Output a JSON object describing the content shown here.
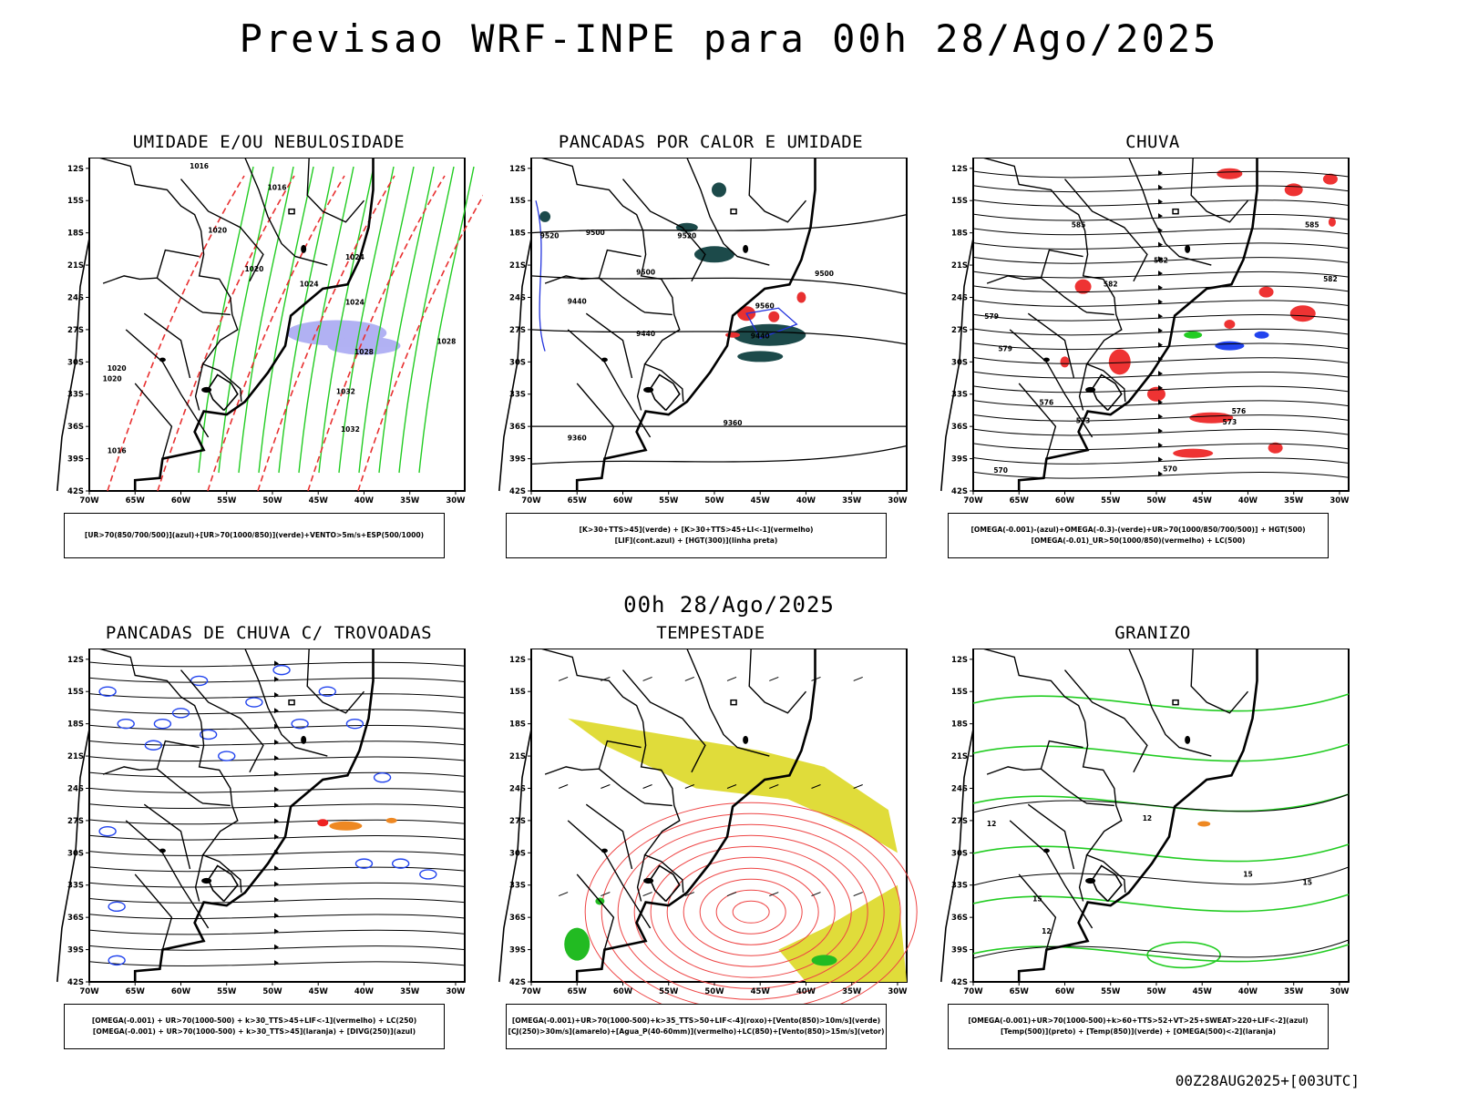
{
  "header": {
    "title": "Previsao WRF-INPE  para 00h 28/Ago/2025",
    "center_date": "00h 28/Ago/2025",
    "footer_code": "00Z28AUG2025+[003UTC]"
  },
  "axes": {
    "lat_labels": [
      "12S",
      "15S",
      "18S",
      "21S",
      "24S",
      "27S",
      "30S",
      "33S",
      "36S",
      "39S",
      "42S"
    ],
    "lon_labels": [
      "70W",
      "65W",
      "60W",
      "55W",
      "50W",
      "45W",
      "40W",
      "35W",
      "30W"
    ]
  },
  "panels": [
    {
      "id": "umidade",
      "title": "UMIDADE E/OU NEBULOSIDADE",
      "legend": [
        "[UR>70(850/700/500)](azul)+[UR>70(1000/850)](verde)+VENTO>5m/s+ESP(500/1000)"
      ],
      "contour_labels": [
        "1016",
        "1016",
        "1020",
        "1020",
        "1024",
        "1024",
        "1028",
        "1032",
        "1032",
        "1020",
        "1020",
        "1024",
        "1028",
        "1016"
      ],
      "colors": {
        "blue": "#8888ee",
        "green": "#22cc22",
        "red": "#e83030",
        "black": "#000000"
      },
      "icon": "humidity-map"
    },
    {
      "id": "pancadas-calor",
      "title": "PANCADAS POR CALOR E UMIDADE",
      "legend": [
        "[K>30+TTS>45](verde) + [K>30+TTS>45+LI<-1](vermelho)",
        "[LIF](cont.azul) + [HGT(300)](linha preta)"
      ],
      "contour_labels": [
        "9500",
        "9520",
        "9500",
        "9520",
        "9440",
        "9440",
        "9500",
        "9560",
        "9440",
        "9360",
        "9360"
      ],
      "colors": {
        "dark": "#1c4a4a",
        "red": "#e83030",
        "blue": "#2233dd"
      },
      "icon": "convection-map"
    },
    {
      "id": "chuva",
      "title": "CHUVA",
      "legend": [
        "[OMEGA(-0.001)-(azul)+OMEGA(-0.3)-(verde)+UR>70(1000/850/700/500)] + HGT(500)",
        "[OMEGA(-0.01)_UR>50(1000/850)(vermelho) + LC(500)"
      ],
      "contour_labels": [
        "585",
        "585",
        "582",
        "582",
        "582",
        "579",
        "579",
        "576",
        "576",
        "573",
        "573",
        "570",
        "570"
      ],
      "colors": {
        "red": "#ee3333",
        "blue": "#2244ee",
        "green": "#22cc22"
      },
      "icon": "rain-map"
    },
    {
      "id": "trovoadas",
      "title": "PANCADAS DE CHUVA C/ TROVOADAS",
      "legend": [
        "[OMEGA(-0.001) + UR>70(1000-500) + k>30_TTS>45+LIF<-1](vermelho) + LC(250)",
        "[OMEGA(-0.001) + UR>70(1000-500) + k>30_TTS>45](laranja) + [DIVG(250)](azul)"
      ],
      "colors": {
        "blue": "#2244ee",
        "orange": "#ee8822",
        "red": "#ee2222"
      },
      "icon": "thunder-map"
    },
    {
      "id": "tempestade",
      "title": "TEMPESTADE",
      "legend": [
        "[OMEGA(-0.001)+UR>70(1000-500)+k>35_TTS>50+LIF<-4](roxo)+[Vento(850)>10m/s](verde)",
        "[CJ(250)>30m/s](amarelo)+[Agua_P(40-60mm)](vermelho)+LC(850)+[Vento(850)>15m/s](vetor)"
      ],
      "colors": {
        "yellow": "#e0dc3a",
        "red": "#ee4444",
        "green": "#22bb22"
      },
      "icon": "storm-map"
    },
    {
      "id": "granizo",
      "title": "GRANIZO",
      "legend": [
        "[OMEGA(-0.001)+UR>70(1000-500)+k>60+TTS>52+VT>25+SWEAT>220+LIF<-2](azul)",
        "[Temp(500)](preto) + [Temp(850)](verde) + [OMEGA(500)<-2](laranja)"
      ],
      "contour_labels": [
        "12",
        "12",
        "15",
        "15",
        "15",
        "12"
      ],
      "colors": {
        "green": "#22cc22",
        "orange": "#ee8822"
      },
      "icon": "hail-map"
    }
  ]
}
